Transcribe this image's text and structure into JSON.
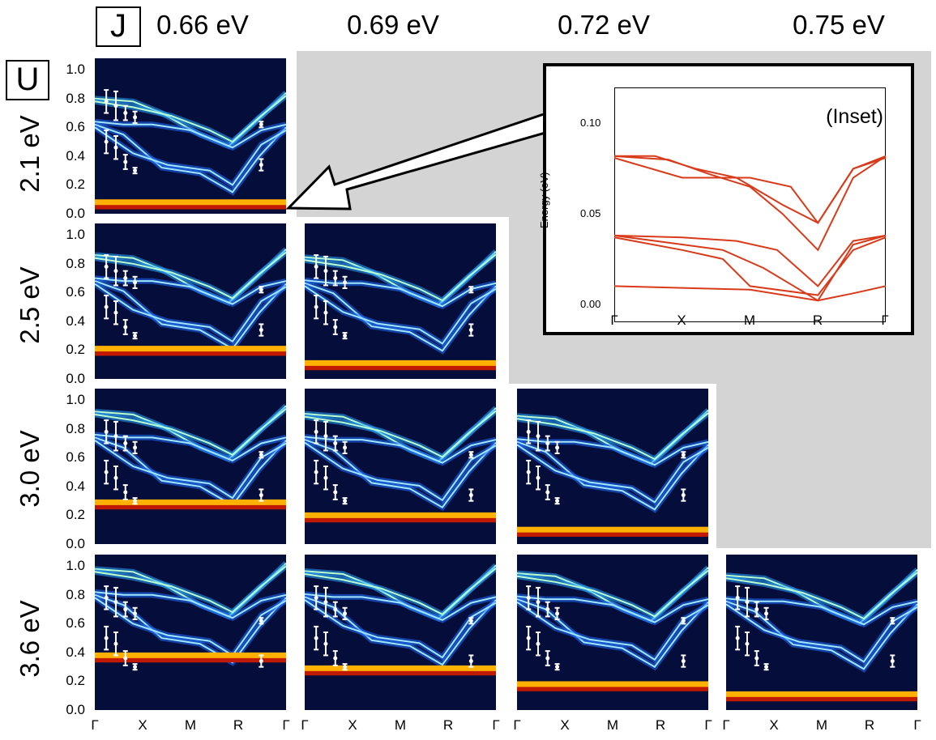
{
  "axis_labels": {
    "coupling": "J",
    "interaction": "U"
  },
  "columns": [
    "0.66 eV",
    "0.69 eV",
    "0.72 eV",
    "0.75 eV"
  ],
  "rows": [
    "2.1 eV",
    "2.5 eV",
    "3.0 eV",
    "3.6 eV"
  ],
  "y_ticks": [
    "1.0",
    "0.8",
    "0.6",
    "0.4",
    "0.2",
    "0.0"
  ],
  "x_ticks": [
    "Γ",
    "X",
    "M",
    "R",
    "Γ"
  ],
  "inset": {
    "title": "(Inset)",
    "ylabel": "Energy (eV)",
    "y_ticks": [
      "0.10",
      "0.05",
      "0.00"
    ],
    "x_ticks": [
      "Γ",
      "X",
      "M",
      "R",
      "Γ"
    ]
  },
  "colors": {
    "background": "#050d3a",
    "inset_line": "#d83a1a",
    "highlight": "#d4d4d4"
  }
}
